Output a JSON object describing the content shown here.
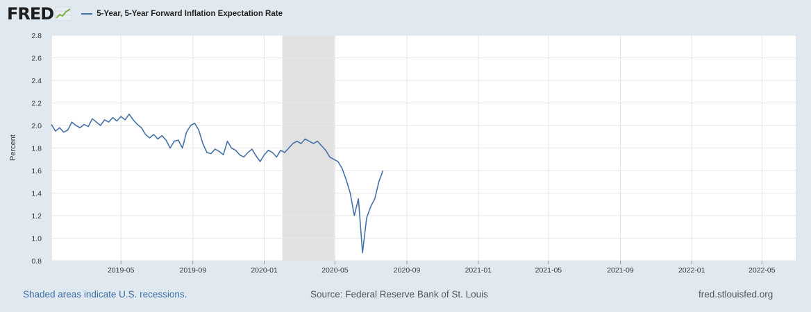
{
  "header": {
    "logo_text": "FRED",
    "logo_icon": "fred-trend-graph-icon",
    "legend_label": "5-Year, 5-Year Forward Inflation Expectation Rate",
    "legend_color": "#4572a7"
  },
  "footer": {
    "recession_note": "Shaded areas indicate U.S. recessions.",
    "source": "Source: Federal Reserve Bank of St. Louis",
    "site": "fred.stlouisfed.org"
  },
  "chart_data": {
    "type": "line",
    "title": "",
    "xlabel": "",
    "ylabel": "Percent",
    "ylim": [
      0.8,
      2.8
    ],
    "xlim": [
      "2019-01-02",
      "2022-06-29"
    ],
    "y_ticks": [
      0.8,
      1.0,
      1.2,
      1.4,
      1.6,
      1.8,
      2.0,
      2.2,
      2.4,
      2.6,
      2.8
    ],
    "x_ticks": [
      "2019-05",
      "2019-09",
      "2020-01",
      "2020-05",
      "2020-09",
      "2021-01",
      "2021-05",
      "2021-09",
      "2022-01",
      "2022-05"
    ],
    "grid": true,
    "legend_position": "top-left",
    "recessions": [
      {
        "start": "2020-02-01",
        "end": "2020-04-30"
      }
    ],
    "series": [
      {
        "name": "5-Year, 5-Year Forward Inflation Expectation Rate",
        "color": "#4572a7",
        "points": [
          [
            "2019-01-02",
            2.01
          ],
          [
            "2019-01-09",
            1.95
          ],
          [
            "2019-01-16",
            1.98
          ],
          [
            "2019-01-23",
            1.94
          ],
          [
            "2019-01-30",
            1.96
          ],
          [
            "2019-02-06",
            2.03
          ],
          [
            "2019-02-13",
            2.0
          ],
          [
            "2019-02-20",
            1.98
          ],
          [
            "2019-02-27",
            2.01
          ],
          [
            "2019-03-06",
            1.99
          ],
          [
            "2019-03-13",
            2.06
          ],
          [
            "2019-03-20",
            2.03
          ],
          [
            "2019-03-27",
            2.0
          ],
          [
            "2019-04-03",
            2.05
          ],
          [
            "2019-04-10",
            2.03
          ],
          [
            "2019-04-17",
            2.07
          ],
          [
            "2019-04-24",
            2.04
          ],
          [
            "2019-05-01",
            2.08
          ],
          [
            "2019-05-08",
            2.05
          ],
          [
            "2019-05-15",
            2.1
          ],
          [
            "2019-05-22",
            2.05
          ],
          [
            "2019-05-29",
            2.01
          ],
          [
            "2019-06-05",
            1.98
          ],
          [
            "2019-06-12",
            1.92
          ],
          [
            "2019-06-19",
            1.89
          ],
          [
            "2019-06-26",
            1.92
          ],
          [
            "2019-07-03",
            1.88
          ],
          [
            "2019-07-10",
            1.91
          ],
          [
            "2019-07-17",
            1.87
          ],
          [
            "2019-07-24",
            1.8
          ],
          [
            "2019-07-31",
            1.86
          ],
          [
            "2019-08-07",
            1.87
          ],
          [
            "2019-08-14",
            1.8
          ],
          [
            "2019-08-21",
            1.94
          ],
          [
            "2019-08-28",
            2.0
          ],
          [
            "2019-09-04",
            2.02
          ],
          [
            "2019-09-11",
            1.96
          ],
          [
            "2019-09-18",
            1.84
          ],
          [
            "2019-09-25",
            1.76
          ],
          [
            "2019-10-02",
            1.75
          ],
          [
            "2019-10-09",
            1.79
          ],
          [
            "2019-10-16",
            1.77
          ],
          [
            "2019-10-23",
            1.74
          ],
          [
            "2019-10-30",
            1.86
          ],
          [
            "2019-11-06",
            1.8
          ],
          [
            "2019-11-13",
            1.78
          ],
          [
            "2019-11-20",
            1.74
          ],
          [
            "2019-11-27",
            1.72
          ],
          [
            "2019-12-04",
            1.76
          ],
          [
            "2019-12-11",
            1.79
          ],
          [
            "2019-12-18",
            1.73
          ],
          [
            "2019-12-25",
            1.68
          ],
          [
            "2020-01-01",
            1.74
          ],
          [
            "2020-01-08",
            1.78
          ],
          [
            "2020-01-15",
            1.76
          ],
          [
            "2020-01-22",
            1.72
          ],
          [
            "2020-01-29",
            1.78
          ],
          [
            "2020-02-05",
            1.76
          ],
          [
            "2020-02-12",
            1.8
          ],
          [
            "2020-02-19",
            1.84
          ],
          [
            "2020-02-26",
            1.86
          ],
          [
            "2020-03-04",
            1.84
          ],
          [
            "2020-03-11",
            1.88
          ],
          [
            "2020-03-18",
            1.86
          ],
          [
            "2020-03-25",
            1.84
          ],
          [
            "2020-04-01",
            1.86
          ],
          [
            "2020-04-08",
            1.82
          ],
          [
            "2020-04-15",
            1.78
          ],
          [
            "2020-04-22",
            1.72
          ],
          [
            "2020-04-29",
            1.7
          ],
          [
            "2020-05-06",
            1.68
          ],
          [
            "2020-05-13",
            1.62
          ],
          [
            "2020-05-20",
            1.52
          ],
          [
            "2020-05-27",
            1.4
          ],
          [
            "2020-06-03",
            1.2
          ],
          [
            "2020-06-10",
            1.35
          ],
          [
            "2020-06-17",
            0.87
          ],
          [
            "2020-06-24",
            1.18
          ],
          [
            "2020-07-01",
            1.28
          ],
          [
            "2020-07-08",
            1.35
          ],
          [
            "2020-07-15",
            1.5
          ],
          [
            "2020-07-22",
            1.6
          ]
        ]
      }
    ]
  }
}
